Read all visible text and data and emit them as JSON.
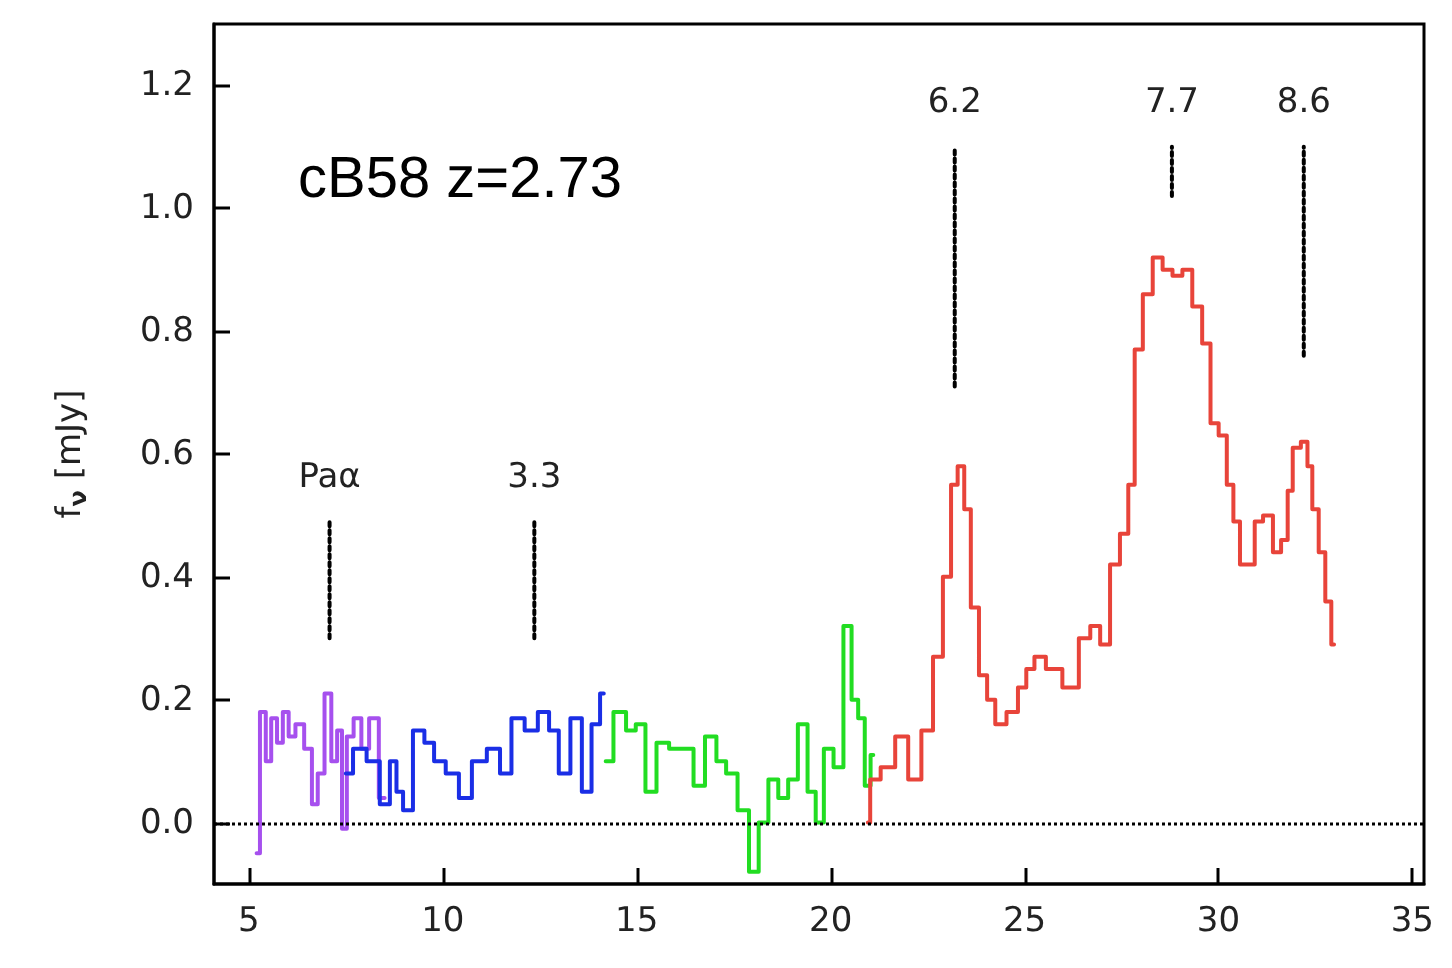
{
  "chart_data": {
    "type": "step",
    "ylabel": "f$_{ν}$ [mJy]",
    "xlim": [
      4.1,
      35.3
    ],
    "xticks": [
      5,
      10,
      15,
      20,
      25,
      30,
      35
    ],
    "ylim": [
      -0.1,
      1.3
    ],
    "yticks": [
      {
        "value": 0,
        "label": "0.0"
      },
      {
        "value": 0.2,
        "label": "0.2"
      },
      {
        "value": 0.4,
        "label": "0.4"
      },
      {
        "value": 0.6,
        "label": "0.6"
      },
      {
        "value": 0.8,
        "label": "0.8"
      },
      {
        "value": 1,
        "label": "1.0"
      },
      {
        "value": 1.2,
        "label": "1.2"
      }
    ],
    "grid": false,
    "marker": "none",
    "series": [
      {
        "color": "#a650ee",
        "x": [
          5.2,
          5.37,
          5.5,
          5.65,
          5.8,
          5.95,
          6.1,
          6.3,
          6.55,
          6.7,
          6.85,
          7.05,
          7.2,
          7.35,
          7.45,
          7.6,
          7.8,
          8.0,
          8.2,
          8.5
        ],
        "values": [
          -0.05,
          0.18,
          0.1,
          0.17,
          0.13,
          0.18,
          0.14,
          0.16,
          0.12,
          0.03,
          0.08,
          0.21,
          0.1,
          0.15,
          -0.01,
          0.14,
          0.17,
          0.12,
          0.17,
          0.04
        ]
      },
      {
        "color": "#1a2ee6",
        "x": [
          7.5,
          7.87,
          8.2,
          8.55,
          8.72,
          8.89,
          9.06,
          9.4,
          9.65,
          9.9,
          10.25,
          10.58,
          10.92,
          11.35,
          11.6,
          11.94,
          12.28,
          12.62,
          12.86,
          13.12,
          13.46,
          13.71,
          13.96,
          14.15
        ],
        "values": [
          0.08,
          0.12,
          0.1,
          0.03,
          0.1,
          0.05,
          0.02,
          0.15,
          0.13,
          0.1,
          0.08,
          0.04,
          0.1,
          0.12,
          0.08,
          0.17,
          0.15,
          0.18,
          0.15,
          0.08,
          0.17,
          0.05,
          0.16,
          0.21
        ]
      },
      {
        "color": "#22dd22",
        "x": [
          14.2,
          14.6,
          14.85,
          15.1,
          15.35,
          15.67,
          16.0,
          16.34,
          16.59,
          16.93,
          17.18,
          17.43,
          17.77,
          18.02,
          18.27,
          18.52,
          18.78,
          19.03,
          19.28,
          19.53,
          19.7,
          19.95,
          20.2,
          20.46,
          20.62,
          20.8,
          20.96,
          21.1
        ],
        "values": [
          0.1,
          0.18,
          0.15,
          0.16,
          0.05,
          0.13,
          0.12,
          0.12,
          0.06,
          0.14,
          0.1,
          0.08,
          0.02,
          -0.08,
          0.0,
          0.07,
          0.04,
          0.07,
          0.16,
          0.05,
          0.0,
          0.12,
          0.09,
          0.32,
          0.2,
          0.17,
          0.06,
          0.11
        ]
      },
      {
        "color": "#e8443a",
        "x": [
          20.96,
          21.08,
          21.5,
          21.83,
          22.17,
          22.51,
          22.77,
          23.02,
          23.19,
          23.36,
          23.53,
          23.7,
          23.95,
          24.12,
          24.37,
          24.7,
          24.96,
          25.13,
          25.38,
          25.72,
          26.23,
          26.57,
          26.82,
          27.08,
          27.33,
          27.59,
          27.76,
          27.92,
          28.18,
          28.43,
          28.69,
          28.94,
          29.2,
          29.45,
          29.71,
          29.88,
          30.13,
          30.3,
          30.47,
          30.64,
          30.89,
          30.98,
          31.32,
          31.49,
          31.74,
          31.83,
          32.0,
          32.25,
          32.34,
          32.5,
          32.67,
          32.84,
          32.98
        ],
        "values": [
          0.0,
          0.07,
          0.09,
          0.14,
          0.07,
          0.15,
          0.27,
          0.4,
          0.55,
          0.58,
          0.51,
          0.35,
          0.24,
          0.2,
          0.16,
          0.18,
          0.22,
          0.25,
          0.27,
          0.25,
          0.22,
          0.3,
          0.32,
          0.29,
          0.42,
          0.47,
          0.55,
          0.77,
          0.86,
          0.92,
          0.9,
          0.89,
          0.9,
          0.84,
          0.78,
          0.65,
          0.63,
          0.55,
          0.49,
          0.42,
          0.42,
          0.49,
          0.5,
          0.44,
          0.46,
          0.54,
          0.61,
          0.62,
          0.58,
          0.51,
          0.44,
          0.36,
          0.29
        ]
      },
      {
        "type": "line",
        "name": "Paα",
        "color": "#000000",
        "line_style": "dotted",
        "x": [
          7.08,
          7.08
        ],
        "values": [
          0.3,
          0.49
        ]
      },
      {
        "type": "line",
        "name": "3.3",
        "color": "#000000",
        "line_style": "dotted",
        "x": [
          12.36,
          12.36
        ],
        "values": [
          0.3,
          0.49
        ]
      },
      {
        "type": "line",
        "name": "6.2",
        "color": "#000000",
        "line_style": "dotted",
        "x": [
          23.2,
          23.2
        ],
        "values": [
          0.71,
          1.1
        ]
      },
      {
        "type": "line",
        "name": "7.7",
        "color": "#000000",
        "line_style": "dotted",
        "x": [
          28.8,
          28.8
        ],
        "values": [
          1.02,
          1.1
        ]
      },
      {
        "type": "line",
        "name": "8.6",
        "color": "#000000",
        "line_style": "dotted",
        "x": [
          32.2,
          32.2
        ],
        "values": [
          0.76,
          1.1
        ]
      }
    ],
    "ref_lines": [
      {
        "axis": "y",
        "value": 0,
        "color": "#000000",
        "line_style": "dotted"
      }
    ],
    "annotations": [
      "cB58 z=2.73"
    ]
  }
}
